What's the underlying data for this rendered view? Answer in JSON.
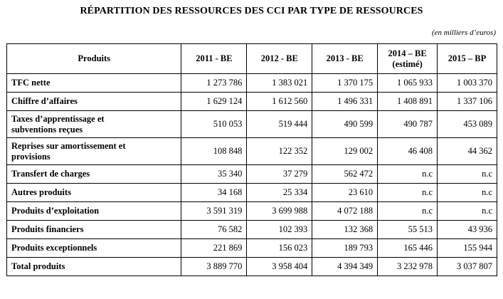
{
  "title": "RÉPARTITION DES RESSOURCES DES CCI PAR TYPE DE RESSOURCES",
  "unit": "(en milliers d’euros)",
  "table": {
    "headers": [
      [
        "Produits"
      ],
      [
        "2011 - BE"
      ],
      [
        "2012 - BE"
      ],
      [
        "2013 - BE"
      ],
      [
        "2014 – BE",
        "(estimé)"
      ],
      [
        "2015 – BP"
      ]
    ],
    "rows": [
      {
        "label": [
          "TFC nette"
        ],
        "values": [
          "1 273 786",
          "1 383 021",
          "1 370 175",
          "1 065 933",
          "1 003 370"
        ]
      },
      {
        "label": [
          "Chiffre d’affaires"
        ],
        "values": [
          "1 629 124",
          "1 612 560",
          "1 496 331",
          "1 408 891",
          "1 337 106"
        ]
      },
      {
        "label": [
          "Taxes d’apprentissage et",
          "subventions reçues"
        ],
        "values": [
          "510 053",
          "519 444",
          "490 599",
          "490 787",
          "453 089"
        ]
      },
      {
        "label": [
          "Reprises sur amortissement et",
          "provisions"
        ],
        "values": [
          "108 848",
          "122 352",
          "129 002",
          "46 408",
          "44 362"
        ]
      },
      {
        "label": [
          "Transfert de charges"
        ],
        "values": [
          "35 340",
          "37 279",
          "562 472",
          "n.c",
          "n.c"
        ]
      },
      {
        "label": [
          "Autres produits"
        ],
        "values": [
          "34 168",
          "25 334",
          "23 610",
          "n.c",
          "n.c"
        ]
      },
      {
        "label": [
          "Produits d’exploitation"
        ],
        "values": [
          "3 591 319",
          "3 699 988",
          "4 072 188",
          "n.c",
          "n.c"
        ]
      },
      {
        "label": [
          "Produits financiers"
        ],
        "values": [
          "76 582",
          "102 393",
          "132 368",
          "55 513",
          "43 936"
        ]
      },
      {
        "label": [
          "Produits exceptionnels"
        ],
        "values": [
          "221 869",
          "156 023",
          "189 793",
          "165 446",
          "155 944"
        ]
      },
      {
        "label": [
          "Total produits"
        ],
        "values": [
          "3 889 770",
          "3 958 404",
          "4 394 349",
          "3 232 978",
          "3 037 807"
        ]
      }
    ]
  }
}
